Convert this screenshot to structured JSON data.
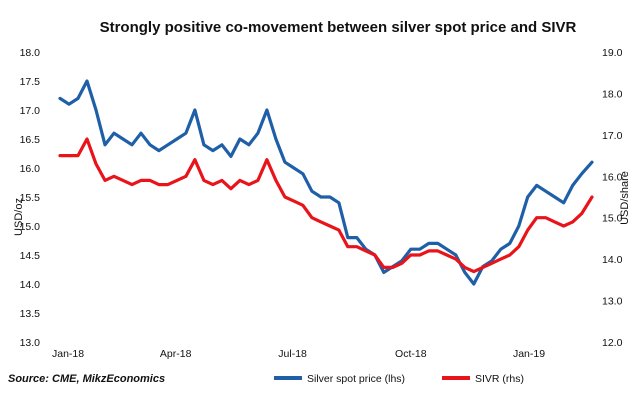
{
  "chart_data": {
    "type": "line",
    "title": "Strongly positive co-movement between silver spot price and SIVR",
    "source": "Source: CME, MikzEconomics",
    "x_ticks": [
      "Jan-18",
      "Apr-18",
      "Jul-18",
      "Oct-18",
      "Jan-19"
    ],
    "x_range": [
      "2018-01-01",
      "2019-02-19"
    ],
    "left_axis": {
      "label": "USD/oz",
      "ylim": [
        13.0,
        18.0
      ],
      "ticks": [
        "18.0",
        "17.5",
        "17.0",
        "16.5",
        "16.0",
        "15.5",
        "15.0",
        "14.5",
        "14.0",
        "13.5",
        "13.0"
      ]
    },
    "right_axis": {
      "label": "USD/share",
      "ylim": [
        12.0,
        19.0
      ],
      "ticks": [
        "19.0",
        "18.0",
        "17.0",
        "16.0",
        "15.0",
        "14.0",
        "13.0",
        "12.0"
      ]
    },
    "series": [
      {
        "name": "Silver spot price (lhs)",
        "axis": "left",
        "color": "#1f5fa8",
        "points": [
          [
            "2018-01-01",
            17.2
          ],
          [
            "2018-01-08",
            17.1
          ],
          [
            "2018-01-15",
            17.2
          ],
          [
            "2018-01-22",
            17.5
          ],
          [
            "2018-01-29",
            17.0
          ],
          [
            "2018-02-05",
            16.4
          ],
          [
            "2018-02-12",
            16.6
          ],
          [
            "2018-02-19",
            16.5
          ],
          [
            "2018-02-26",
            16.4
          ],
          [
            "2018-03-05",
            16.6
          ],
          [
            "2018-03-12",
            16.4
          ],
          [
            "2018-03-19",
            16.3
          ],
          [
            "2018-03-26",
            16.4
          ],
          [
            "2018-04-02",
            16.5
          ],
          [
            "2018-04-09",
            16.6
          ],
          [
            "2018-04-16",
            17.0
          ],
          [
            "2018-04-23",
            16.4
          ],
          [
            "2018-04-30",
            16.3
          ],
          [
            "2018-05-07",
            16.4
          ],
          [
            "2018-05-14",
            16.2
          ],
          [
            "2018-05-21",
            16.5
          ],
          [
            "2018-05-28",
            16.4
          ],
          [
            "2018-06-04",
            16.6
          ],
          [
            "2018-06-11",
            17.0
          ],
          [
            "2018-06-18",
            16.5
          ],
          [
            "2018-06-25",
            16.1
          ],
          [
            "2018-07-02",
            16.0
          ],
          [
            "2018-07-09",
            15.9
          ],
          [
            "2018-07-16",
            15.6
          ],
          [
            "2018-07-23",
            15.5
          ],
          [
            "2018-07-30",
            15.5
          ],
          [
            "2018-08-06",
            15.4
          ],
          [
            "2018-08-13",
            14.8
          ],
          [
            "2018-08-20",
            14.8
          ],
          [
            "2018-08-27",
            14.6
          ],
          [
            "2018-09-03",
            14.5
          ],
          [
            "2018-09-10",
            14.2
          ],
          [
            "2018-09-17",
            14.3
          ],
          [
            "2018-09-24",
            14.4
          ],
          [
            "2018-10-01",
            14.6
          ],
          [
            "2018-10-08",
            14.6
          ],
          [
            "2018-10-15",
            14.7
          ],
          [
            "2018-10-22",
            14.7
          ],
          [
            "2018-10-29",
            14.6
          ],
          [
            "2018-11-05",
            14.5
          ],
          [
            "2018-11-12",
            14.2
          ],
          [
            "2018-11-19",
            14.0
          ],
          [
            "2018-11-26",
            14.3
          ],
          [
            "2018-12-03",
            14.4
          ],
          [
            "2018-12-10",
            14.6
          ],
          [
            "2018-12-17",
            14.7
          ],
          [
            "2018-12-24",
            15.0
          ],
          [
            "2018-12-31",
            15.5
          ],
          [
            "2019-01-07",
            15.7
          ],
          [
            "2019-01-14",
            15.6
          ],
          [
            "2019-01-21",
            15.5
          ],
          [
            "2019-01-28",
            15.4
          ],
          [
            "2019-02-04",
            15.7
          ],
          [
            "2019-02-11",
            15.9
          ],
          [
            "2019-02-19",
            16.1
          ]
        ]
      },
      {
        "name": "SIVR (rhs)",
        "axis": "right",
        "color": "#e8141a",
        "points": [
          [
            "2018-01-01",
            16.5
          ],
          [
            "2018-01-08",
            16.5
          ],
          [
            "2018-01-15",
            16.5
          ],
          [
            "2018-01-22",
            16.9
          ],
          [
            "2018-01-29",
            16.3
          ],
          [
            "2018-02-05",
            15.9
          ],
          [
            "2018-02-12",
            16.0
          ],
          [
            "2018-02-19",
            15.9
          ],
          [
            "2018-02-26",
            15.8
          ],
          [
            "2018-03-05",
            15.9
          ],
          [
            "2018-03-12",
            15.9
          ],
          [
            "2018-03-19",
            15.8
          ],
          [
            "2018-03-26",
            15.8
          ],
          [
            "2018-04-02",
            15.9
          ],
          [
            "2018-04-09",
            16.0
          ],
          [
            "2018-04-16",
            16.4
          ],
          [
            "2018-04-23",
            15.9
          ],
          [
            "2018-04-30",
            15.8
          ],
          [
            "2018-05-07",
            15.9
          ],
          [
            "2018-05-14",
            15.7
          ],
          [
            "2018-05-21",
            15.9
          ],
          [
            "2018-05-28",
            15.8
          ],
          [
            "2018-06-04",
            15.9
          ],
          [
            "2018-06-11",
            16.4
          ],
          [
            "2018-06-18",
            15.9
          ],
          [
            "2018-06-25",
            15.5
          ],
          [
            "2018-07-02",
            15.4
          ],
          [
            "2018-07-09",
            15.3
          ],
          [
            "2018-07-16",
            15.0
          ],
          [
            "2018-07-23",
            14.9
          ],
          [
            "2018-07-30",
            14.8
          ],
          [
            "2018-08-06",
            14.7
          ],
          [
            "2018-08-13",
            14.3
          ],
          [
            "2018-08-20",
            14.3
          ],
          [
            "2018-08-27",
            14.2
          ],
          [
            "2018-09-03",
            14.1
          ],
          [
            "2018-09-10",
            13.8
          ],
          [
            "2018-09-17",
            13.8
          ],
          [
            "2018-09-24",
            13.9
          ],
          [
            "2018-10-01",
            14.1
          ],
          [
            "2018-10-08",
            14.1
          ],
          [
            "2018-10-15",
            14.2
          ],
          [
            "2018-10-22",
            14.2
          ],
          [
            "2018-10-29",
            14.1
          ],
          [
            "2018-11-05",
            14.0
          ],
          [
            "2018-11-12",
            13.8
          ],
          [
            "2018-11-19",
            13.7
          ],
          [
            "2018-11-26",
            13.8
          ],
          [
            "2018-12-03",
            13.9
          ],
          [
            "2018-12-10",
            14.0
          ],
          [
            "2018-12-17",
            14.1
          ],
          [
            "2018-12-24",
            14.3
          ],
          [
            "2018-12-31",
            14.7
          ],
          [
            "2019-01-07",
            15.0
          ],
          [
            "2019-01-14",
            15.0
          ],
          [
            "2019-01-21",
            14.9
          ],
          [
            "2019-01-28",
            14.8
          ],
          [
            "2019-02-04",
            14.9
          ],
          [
            "2019-02-11",
            15.1
          ],
          [
            "2019-02-19",
            15.5
          ]
        ]
      }
    ],
    "grid": false,
    "legend_position": "bottom"
  }
}
